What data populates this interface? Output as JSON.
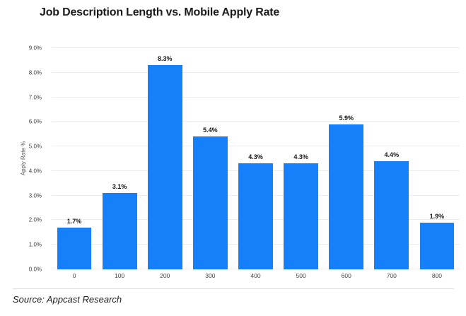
{
  "chart_data": {
    "type": "bar",
    "title": "Job Description Length vs. Mobile Apply Rate",
    "xlabel": "",
    "ylabel": "Apply Rate %",
    "categories": [
      "0",
      "100",
      "200",
      "300",
      "400",
      "500",
      "600",
      "700",
      "800"
    ],
    "values": [
      1.7,
      3.1,
      8.3,
      5.4,
      4.3,
      4.3,
      5.9,
      4.4,
      1.9
    ],
    "value_labels": [
      "1.7%",
      "3.1%",
      "8.3%",
      "5.4%",
      "4.3%",
      "4.3%",
      "5.9%",
      "4.4%",
      "1.9%"
    ],
    "y_ticks": [
      "0.0%",
      "1.0%",
      "2.0%",
      "3.0%",
      "4.0%",
      "5.0%",
      "6.0%",
      "7.0%",
      "8.0%",
      "9.0%"
    ],
    "ylim": [
      0,
      9
    ],
    "grid": true,
    "legend": false
  },
  "source": "Source: Appcast Research",
  "colors": {
    "bar": "#1680FB",
    "grid": "#ececec",
    "title_text": "#1b1b1b",
    "tick_text": "#3f3f3f",
    "divider": "#dbdbdb",
    "background": "#ffffff"
  }
}
